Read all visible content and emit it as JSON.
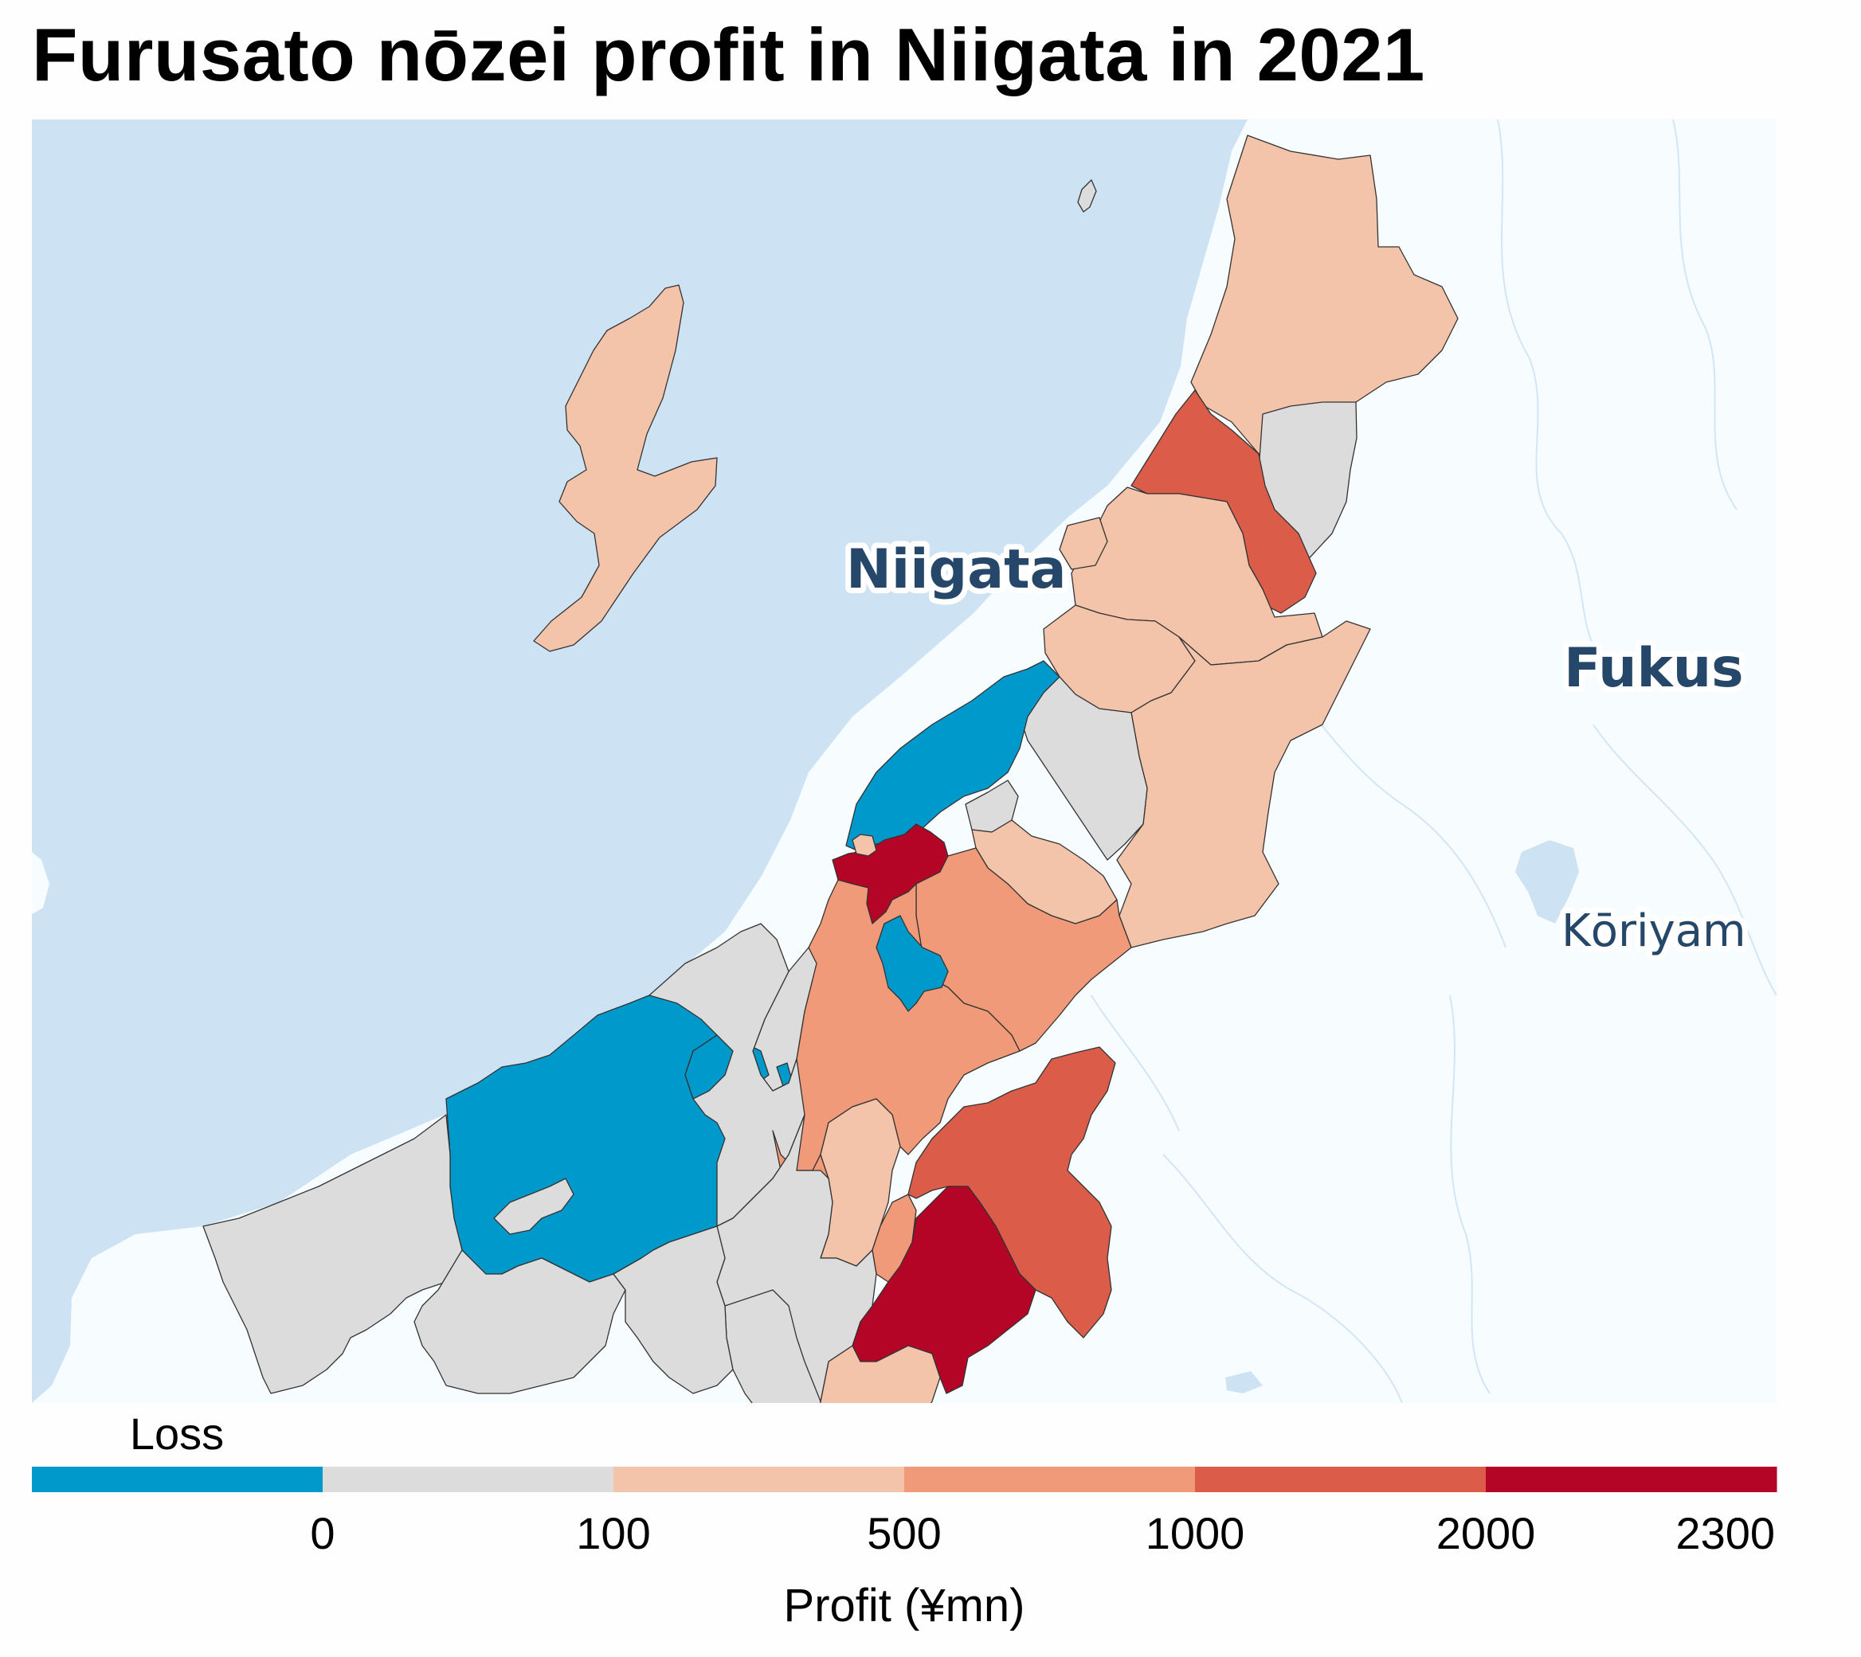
{
  "title": "Furusato nōzei profit in Niigata in 2021",
  "map": {
    "sea_color": "#cde3f4",
    "land_color": "#f7fcff",
    "water_color": "#cde3f4",
    "city_labels": [
      {
        "name": "Niigata",
        "style": "bold"
      },
      {
        "name": "Fukus",
        "style": "bold"
      },
      {
        "name": "Kōriyam",
        "style": "normal"
      }
    ],
    "categories": [
      {
        "key": "loss",
        "range": "< 0",
        "color": "#0099cc"
      },
      {
        "key": "c0_100",
        "range": "0–100",
        "color": "#dcdcdc"
      },
      {
        "key": "c100_500",
        "range": "100–500",
        "color": "#f4c4aa"
      },
      {
        "key": "c500_1000",
        "range": "500–1000",
        "color": "#f19a7a"
      },
      {
        "key": "c1000_2000",
        "range": "1000–2000",
        "color": "#dc5c4a"
      },
      {
        "key": "c2000_2300",
        "range": "2000–2300",
        "color": "#b40526"
      }
    ]
  },
  "legend": {
    "loss_label": "Loss",
    "tick_labels": [
      "0",
      "100",
      "500",
      "1000",
      "2000",
      "2300"
    ],
    "title": "Profit (¥mn)",
    "colors": [
      "#0099cc",
      "#dcdcdc",
      "#f4c4aa",
      "#f19a7a",
      "#dc5c4a",
      "#b40526"
    ]
  }
}
